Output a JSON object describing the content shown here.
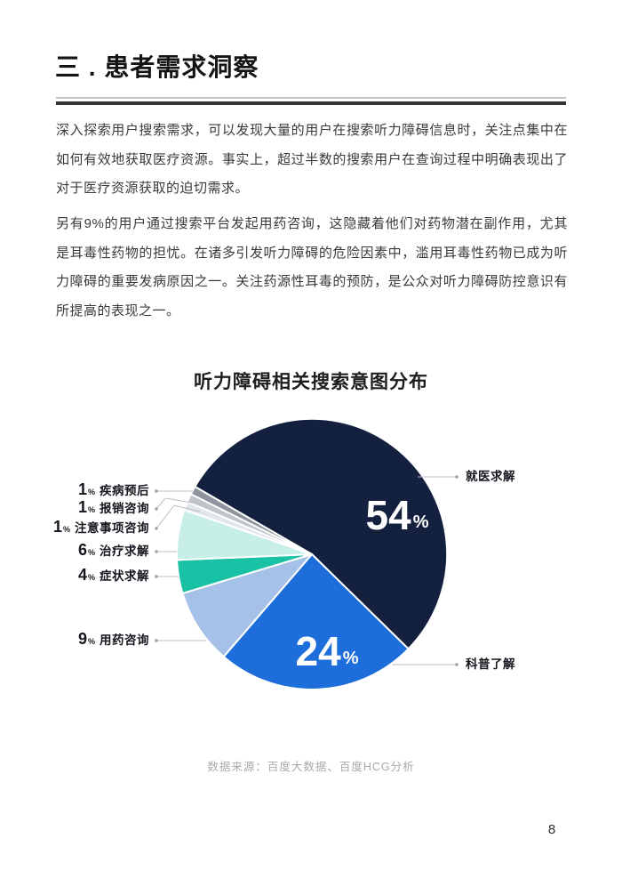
{
  "header": {
    "title": "三 . 患者需求洞察"
  },
  "body": {
    "paragraph1": "深入探索用户搜索需求，可以发现大量的用户在搜索听力障碍信息时，关注点集中在如何有效地获取医疗资源。事实上，超过半数的搜索用户在查询过程中明确表现出了对于医疗资源获取的迫切需求。",
    "paragraph2": "另有9%的用户通过搜索平台发起用药咨询，这隐藏着他们对药物潜在副作用，尤其是耳毒性药物的担忧。在诸多引发听力障碍的危险因素中，滥用耳毒性药物已成为听力障碍的重要发病原因之一。关注药源性耳毒的预防，是公众对听力障碍防控意识有所提高的表现之一。"
  },
  "chart_data": {
    "type": "pie",
    "title": "听力障碍相关搜索意图分布",
    "unit": "%",
    "start_angle_deg_from_north": 300,
    "clockwise": true,
    "legend_position": "callout-labels",
    "slices": [
      {
        "label": "就医求解",
        "value": 54,
        "color": "#13203e"
      },
      {
        "label": "科普了解",
        "value": 24,
        "color": "#1d6edb"
      },
      {
        "label": "用药咨询",
        "value": 9,
        "color": "#a6c1e7"
      },
      {
        "label": "症状求解",
        "value": 4,
        "color": "#19c2a4"
      },
      {
        "label": "治疗求解",
        "value": 6,
        "color": "#c7efe7"
      },
      {
        "label": "注意事项咨询",
        "value": 1,
        "color": "#e4e7ea"
      },
      {
        "label": "报销咨询",
        "value": 1,
        "color": "#bfc3ca"
      },
      {
        "label": "疾病预后",
        "value": 1,
        "color": "#8f959f"
      }
    ]
  },
  "footer": {
    "source_note": "数据来源：百度大数据、百度HCG分析",
    "page_number": "8"
  }
}
